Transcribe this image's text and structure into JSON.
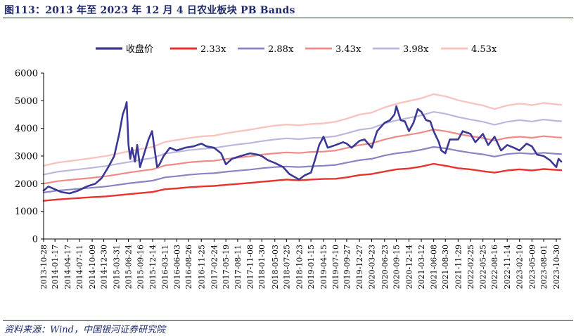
{
  "header": {
    "title": "图113：2013 年至 2023 年 12 月 4 日农业板块 PB Bands"
  },
  "footer": {
    "source": "资料来源：Wind，中国银河证券研究院"
  },
  "colors": {
    "title": "#1f2a6b",
    "axis": "#000000",
    "close": "#3b3795",
    "band_2_33": "#e8322d",
    "band_2_88": "#8a83c4",
    "band_3_43": "#f08a87",
    "band_3_98": "#bdb7dd",
    "band_4_53": "#f9c3c0"
  },
  "chart_data": {
    "type": "line",
    "title": "图113：2013 年至 2023 年 12 月 4 日农业板块 PB Bands",
    "xlabel": "",
    "ylabel": "",
    "ylim": [
      0,
      6000
    ],
    "yticks": [
      0,
      1000,
      2000,
      3000,
      4000,
      5000,
      6000
    ],
    "grid": false,
    "legend_position": "top",
    "xrange": [
      "2013-10-28",
      "2023-12-04"
    ],
    "x_tick_labels": [
      "2013-10-28",
      "2014-01-17",
      "2014-04-17",
      "2014-07-11",
      "2014-10-09",
      "2014-12-30",
      "2015-03-31",
      "2015-06-24",
      "2015-09-16",
      "2015-12-14",
      "2016-03-11",
      "2016-06-03",
      "2016-08-26",
      "2016-11-25",
      "2017-02-24",
      "2017-05-19",
      "2017-08-11",
      "2017-11-08",
      "2018-01-30",
      "2018-05-03",
      "2018-07-25",
      "2018-10-23",
      "2019-01-15",
      "2019-04-15",
      "2019-07-10",
      "2019-09-27",
      "2019-12-27",
      "2020-03-23",
      "2020-06-23",
      "2020-09-15",
      "2020-12-14",
      "2021-03-12",
      "2021-06-08",
      "2021-08-30",
      "2021-11-29",
      "2022-02-25",
      "2022-05-25",
      "2022-08-16",
      "2022-11-14",
      "2023-02-10",
      "2023-05-09",
      "2023-08-01",
      "2023-10-30"
    ],
    "series": [
      {
        "name": "收盘价",
        "color": "#3b3795",
        "width": 2.6,
        "x": [
          "2013-10-28",
          "2013-12-01",
          "2014-01-15",
          "2014-03-01",
          "2014-05-01",
          "2014-07-01",
          "2014-09-01",
          "2014-11-01",
          "2014-12-15",
          "2015-02-01",
          "2015-03-15",
          "2015-04-20",
          "2015-05-15",
          "2015-06-05",
          "2015-06-12",
          "2015-06-25",
          "2015-07-08",
          "2015-07-20",
          "2015-08-10",
          "2015-08-26",
          "2015-09-15",
          "2015-10-15",
          "2015-11-15",
          "2015-12-10",
          "2016-01-15",
          "2016-02-01",
          "2016-03-01",
          "2016-04-15",
          "2016-06-01",
          "2016-08-01",
          "2016-10-01",
          "2016-11-25",
          "2017-01-01",
          "2017-02-24",
          "2017-04-15",
          "2017-05-19",
          "2017-07-01",
          "2017-09-01",
          "2017-11-08",
          "2018-01-01",
          "2018-01-30",
          "2018-03-15",
          "2018-05-03",
          "2018-07-01",
          "2018-08-15",
          "2018-10-23",
          "2018-12-01",
          "2019-01-15",
          "2019-02-15",
          "2019-03-15",
          "2019-04-15",
          "2019-05-15",
          "2019-07-10",
          "2019-09-01",
          "2019-09-27",
          "2019-11-01",
          "2019-12-27",
          "2020-02-01",
          "2020-03-23",
          "2020-05-01",
          "2020-06-23",
          "2020-08-01",
          "2020-09-01",
          "2020-09-15",
          "2020-10-15",
          "2020-11-15",
          "2020-12-14",
          "2021-01-15",
          "2021-02-15",
          "2021-03-12",
          "2021-04-15",
          "2021-05-15",
          "2021-06-08",
          "2021-07-15",
          "2021-08-01",
          "2021-08-30",
          "2021-10-01",
          "2021-11-29",
          "2022-01-01",
          "2022-02-25",
          "2022-04-01",
          "2022-05-25",
          "2022-07-01",
          "2022-08-16",
          "2022-10-01",
          "2022-11-14",
          "2023-01-01",
          "2023-02-10",
          "2023-04-01",
          "2023-05-09",
          "2023-06-15",
          "2023-08-01",
          "2023-09-15",
          "2023-10-30",
          "2023-11-15",
          "2023-12-04"
        ],
        "values": [
          1750,
          1900,
          1800,
          1700,
          1650,
          1750,
          1900,
          2000,
          2200,
          2600,
          3000,
          3800,
          4500,
          4800,
          4950,
          3400,
          2900,
          3300,
          2800,
          3400,
          2600,
          3100,
          3600,
          3900,
          2600,
          2700,
          3000,
          3300,
          3200,
          3300,
          3350,
          3450,
          3350,
          3300,
          3100,
          2700,
          2900,
          3000,
          3100,
          3050,
          3000,
          2850,
          2750,
          2600,
          2350,
          2150,
          2300,
          2400,
          2900,
          3400,
          3700,
          3300,
          3400,
          3500,
          3450,
          3300,
          3550,
          3600,
          3300,
          3900,
          4200,
          4300,
          4500,
          4800,
          4300,
          4250,
          3900,
          4200,
          4700,
          4600,
          4300,
          4250,
          3900,
          3500,
          3200,
          3100,
          3600,
          3600,
          3900,
          3800,
          3500,
          3800,
          3400,
          3700,
          3200,
          3400,
          3300,
          3200,
          3450,
          3350,
          3050,
          3000,
          2850,
          2600,
          2900,
          2800
        ]
      },
      {
        "name": "2.33x",
        "color": "#e8322d",
        "width": 2.4,
        "x": [
          "2013-10-28",
          "2014-02-01",
          "2014-06-01",
          "2014-10-01",
          "2015-01-15",
          "2015-03-31",
          "2015-06-24",
          "2015-09-16",
          "2015-12-14",
          "2016-03-11",
          "2016-06-03",
          "2016-08-26",
          "2016-11-25",
          "2017-02-24",
          "2017-05-19",
          "2017-08-11",
          "2017-11-08",
          "2018-01-30",
          "2018-05-03",
          "2018-07-25",
          "2018-10-23",
          "2019-01-15",
          "2019-04-15",
          "2019-07-10",
          "2019-09-27",
          "2019-12-27",
          "2020-03-23",
          "2020-06-23",
          "2020-09-15",
          "2020-12-14",
          "2021-03-12",
          "2021-06-08",
          "2021-08-30",
          "2021-11-29",
          "2022-02-25",
          "2022-05-25",
          "2022-08-16",
          "2022-11-14",
          "2023-02-10",
          "2023-05-09",
          "2023-08-01",
          "2023-10-30",
          "2023-12-04"
        ],
        "values": [
          1380,
          1430,
          1470,
          1510,
          1540,
          1580,
          1620,
          1660,
          1700,
          1800,
          1830,
          1870,
          1900,
          1920,
          1960,
          1990,
          2030,
          2070,
          2110,
          2150,
          2120,
          2150,
          2170,
          2180,
          2230,
          2310,
          2350,
          2440,
          2520,
          2550,
          2620,
          2720,
          2650,
          2560,
          2520,
          2450,
          2400,
          2480,
          2520,
          2480,
          2530,
          2500,
          2490
        ]
      },
      {
        "name": "2.88x",
        "color": "#8a83c4",
        "width": 2.2,
        "x": [
          "2013-10-28",
          "2014-02-01",
          "2014-06-01",
          "2014-10-01",
          "2015-01-15",
          "2015-03-31",
          "2015-06-24",
          "2015-09-16",
          "2015-12-14",
          "2016-03-11",
          "2016-06-03",
          "2016-08-26",
          "2016-11-25",
          "2017-02-24",
          "2017-05-19",
          "2017-08-11",
          "2017-11-08",
          "2018-01-30",
          "2018-05-03",
          "2018-07-25",
          "2018-10-23",
          "2019-01-15",
          "2019-04-15",
          "2019-07-10",
          "2019-09-27",
          "2019-12-27",
          "2020-03-23",
          "2020-06-23",
          "2020-09-15",
          "2020-12-14",
          "2021-03-12",
          "2021-06-08",
          "2021-08-30",
          "2021-11-29",
          "2022-02-25",
          "2022-05-25",
          "2022-08-16",
          "2022-11-14",
          "2023-02-10",
          "2023-05-09",
          "2023-08-01",
          "2023-10-30",
          "2023-12-04"
        ],
        "values": [
          1680,
          1750,
          1800,
          1850,
          1900,
          1950,
          2010,
          2060,
          2110,
          2230,
          2270,
          2320,
          2360,
          2380,
          2430,
          2470,
          2510,
          2560,
          2600,
          2620,
          2600,
          2630,
          2650,
          2680,
          2760,
          2850,
          2900,
          3020,
          3100,
          3150,
          3230,
          3330,
          3280,
          3190,
          3120,
          3060,
          2980,
          3070,
          3110,
          3080,
          3120,
          3080,
          3070
        ]
      },
      {
        "name": "3.43x",
        "color": "#f08a87",
        "width": 2.2,
        "x": [
          "2013-10-28",
          "2014-02-01",
          "2014-06-01",
          "2014-10-01",
          "2015-01-15",
          "2015-03-31",
          "2015-06-24",
          "2015-09-16",
          "2015-12-14",
          "2016-03-11",
          "2016-06-03",
          "2016-08-26",
          "2016-11-25",
          "2017-02-24",
          "2017-05-19",
          "2017-08-11",
          "2017-11-08",
          "2018-01-30",
          "2018-05-03",
          "2018-07-25",
          "2018-10-23",
          "2019-01-15",
          "2019-04-15",
          "2019-07-10",
          "2019-09-27",
          "2019-12-27",
          "2020-03-23",
          "2020-06-23",
          "2020-09-15",
          "2020-12-14",
          "2021-03-12",
          "2021-06-08",
          "2021-08-30",
          "2021-11-29",
          "2022-02-25",
          "2022-05-25",
          "2022-08-16",
          "2022-11-14",
          "2023-02-10",
          "2023-05-09",
          "2023-08-01",
          "2023-10-30",
          "2023-12-04"
        ],
        "values": [
          2000,
          2090,
          2150,
          2210,
          2270,
          2330,
          2400,
          2460,
          2520,
          2660,
          2710,
          2770,
          2810,
          2830,
          2890,
          2940,
          2990,
          3050,
          3100,
          3130,
          3110,
          3150,
          3160,
          3200,
          3290,
          3400,
          3460,
          3600,
          3700,
          3770,
          3850,
          3960,
          3900,
          3800,
          3720,
          3650,
          3560,
          3660,
          3700,
          3660,
          3720,
          3680,
          3670
        ]
      },
      {
        "name": "3.98x",
        "color": "#bdb7dd",
        "width": 2.2,
        "x": [
          "2013-10-28",
          "2014-02-01",
          "2014-06-01",
          "2014-10-01",
          "2015-01-15",
          "2015-03-31",
          "2015-06-24",
          "2015-09-16",
          "2015-12-14",
          "2016-03-11",
          "2016-06-03",
          "2016-08-26",
          "2016-11-25",
          "2017-02-24",
          "2017-05-19",
          "2017-08-11",
          "2017-11-08",
          "2018-01-30",
          "2018-05-03",
          "2018-07-25",
          "2018-10-23",
          "2019-01-15",
          "2019-04-15",
          "2019-07-10",
          "2019-09-27",
          "2019-12-27",
          "2020-03-23",
          "2020-06-23",
          "2020-09-15",
          "2020-12-14",
          "2021-03-12",
          "2021-06-08",
          "2021-08-30",
          "2021-11-29",
          "2022-02-25",
          "2022-05-25",
          "2022-08-16",
          "2022-11-14",
          "2023-02-10",
          "2023-05-09",
          "2023-08-01",
          "2023-10-30",
          "2023-12-04"
        ],
        "values": [
          2330,
          2430,
          2500,
          2570,
          2640,
          2710,
          2780,
          2860,
          2930,
          3090,
          3150,
          3210,
          3260,
          3290,
          3360,
          3420,
          3470,
          3540,
          3600,
          3640,
          3610,
          3650,
          3670,
          3720,
          3820,
          3950,
          4010,
          4180,
          4290,
          4380,
          4470,
          4600,
          4530,
          4410,
          4320,
          4240,
          4130,
          4240,
          4300,
          4250,
          4320,
          4270,
          4260
        ]
      },
      {
        "name": "4.53x",
        "color": "#f9c3c0",
        "width": 2.4,
        "x": [
          "2013-10-28",
          "2014-02-01",
          "2014-06-01",
          "2014-10-01",
          "2015-01-15",
          "2015-03-31",
          "2015-06-24",
          "2015-09-16",
          "2015-12-14",
          "2016-03-11",
          "2016-06-03",
          "2016-08-26",
          "2016-11-25",
          "2017-02-24",
          "2017-05-19",
          "2017-08-11",
          "2017-11-08",
          "2018-01-30",
          "2018-05-03",
          "2018-07-25",
          "2018-10-23",
          "2019-01-15",
          "2019-04-15",
          "2019-07-10",
          "2019-09-27",
          "2019-12-27",
          "2020-03-23",
          "2020-06-23",
          "2020-09-15",
          "2020-12-14",
          "2021-03-12",
          "2021-06-08",
          "2021-08-30",
          "2021-11-29",
          "2022-02-25",
          "2022-05-25",
          "2022-08-16",
          "2022-11-14",
          "2023-02-10",
          "2023-05-09",
          "2023-08-01",
          "2023-10-30",
          "2023-12-04"
        ],
        "values": [
          2650,
          2760,
          2840,
          2920,
          3000,
          3080,
          3170,
          3250,
          3330,
          3510,
          3580,
          3650,
          3710,
          3740,
          3820,
          3890,
          3950,
          4030,
          4100,
          4140,
          4110,
          4160,
          4180,
          4240,
          4350,
          4500,
          4570,
          4760,
          4890,
          4990,
          5090,
          5240,
          5160,
          5020,
          4920,
          4830,
          4700,
          4830,
          4900,
          4840,
          4920,
          4870,
          4850
        ]
      }
    ]
  }
}
